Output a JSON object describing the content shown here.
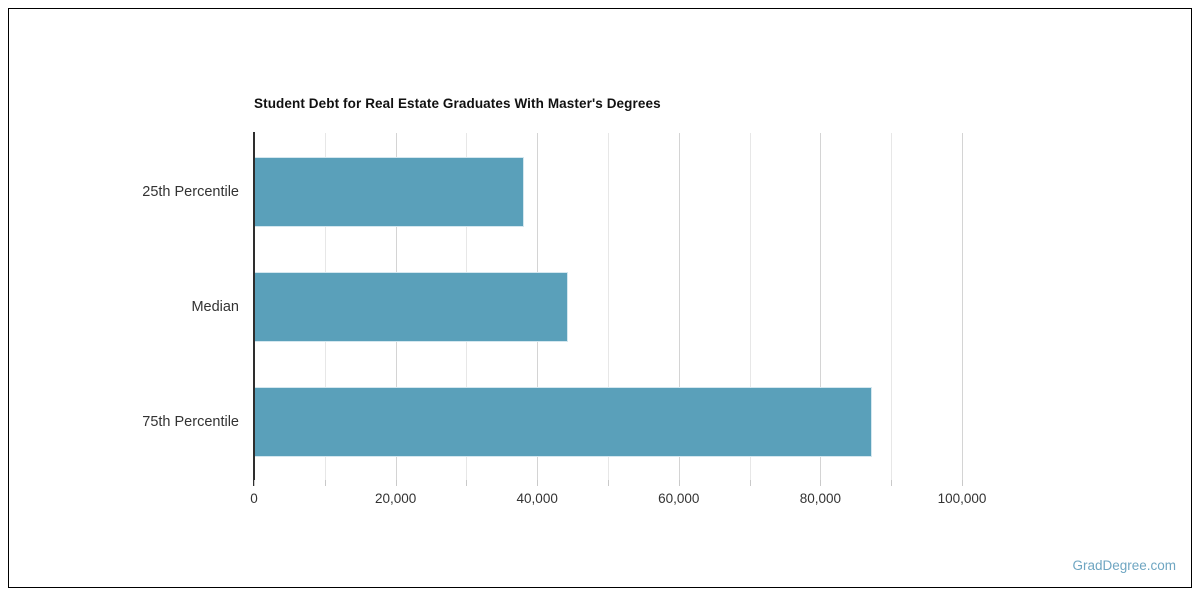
{
  "chart_data": {
    "type": "bar",
    "orientation": "horizontal",
    "title": "Student Debt for Real Estate Graduates With Master's Degrees",
    "categories": [
      "25th Percentile",
      "Median",
      "75th Percentile"
    ],
    "values": [
      38100,
      44400,
      87300
    ],
    "xlabel": "",
    "ylabel": "",
    "xlim": [
      0,
      115500
    ],
    "x_ticks": [
      0,
      20000,
      40000,
      60000,
      80000,
      100000
    ],
    "x_tick_labels": [
      "0",
      "20,000",
      "40,000",
      "60,000",
      "80,000",
      "100,000"
    ],
    "minor_tick_step": 10000,
    "grid": true,
    "legend": false,
    "bar_color": "#5aa0ba",
    "bar_border_color": "#d4e7ef",
    "axis_line_color": "#2e2e2e",
    "grid_minor_color": "#e7e7e7",
    "grid_major_color": "#d4d4d4",
    "label_color": "#333333"
  },
  "watermark": {
    "label": "GradDegree.com",
    "color": "#6fa6c2"
  }
}
